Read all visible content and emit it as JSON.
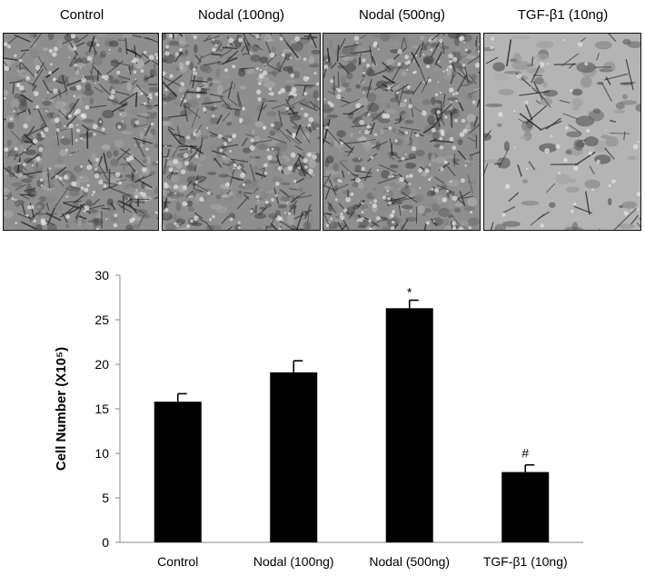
{
  "panels": [
    {
      "label": "Control",
      "texture": "dense"
    },
    {
      "label": "Nodal (100ng)",
      "texture": "dense"
    },
    {
      "label": "Nodal (500ng)",
      "texture": "dense"
    },
    {
      "label": "TGF-β1 (10ng)",
      "texture": "sparse"
    }
  ],
  "chart_data": {
    "type": "bar",
    "categories": [
      "Control",
      "Nodal (100ng)",
      "Nodal (500ng)",
      "TGF-β1 (10ng)"
    ],
    "values": [
      15.8,
      19.1,
      26.3,
      7.9
    ],
    "errors": [
      0.9,
      1.3,
      0.9,
      0.8
    ],
    "annotations": [
      "",
      "",
      "*",
      "#"
    ],
    "ylabel": "Cell Number (X10⁵)",
    "ylim": [
      0,
      30
    ],
    "yticks": [
      0,
      5,
      10,
      15,
      20,
      25,
      30
    ],
    "bar_color": "#000000",
    "grid": false
  }
}
